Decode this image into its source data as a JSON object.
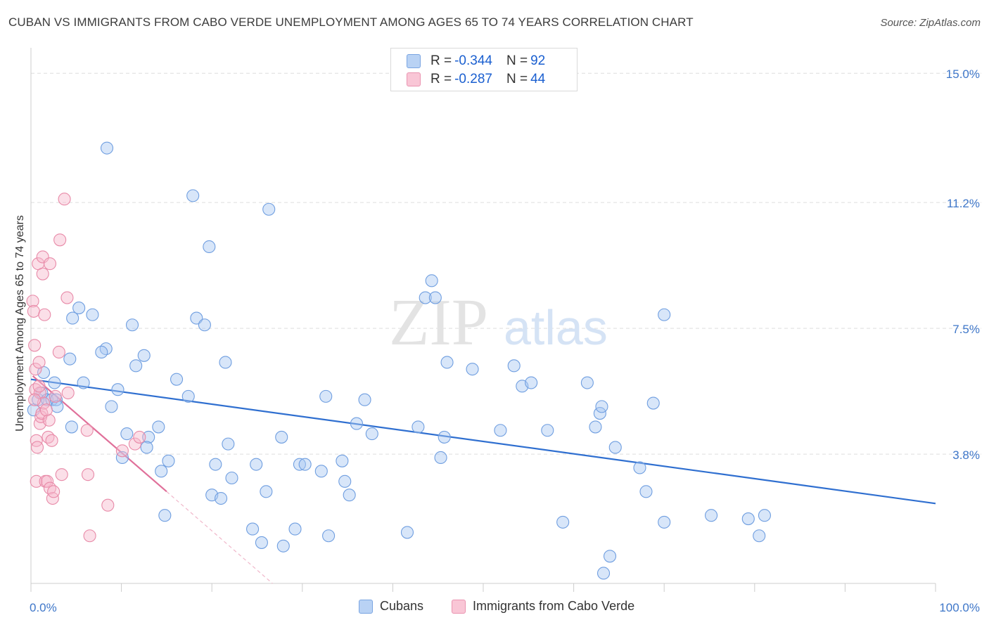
{
  "title": "CUBAN VS IMMIGRANTS FROM CABO VERDE UNEMPLOYMENT AMONG AGES 65 TO 74 YEARS CORRELATION CHART",
  "source": "Source: ZipAtlas.com",
  "watermark": {
    "zip": "ZIP",
    "atlas": "atlas"
  },
  "legend": {
    "cubans": {
      "r_label": "R = ",
      "r_value": "-0.344",
      "n_label": "N = ",
      "n_value": "92"
    },
    "caboverde": {
      "r_label": "R = ",
      "r_value": "-0.287",
      "n_label": "N = ",
      "n_value": "44"
    }
  },
  "colors": {
    "blue_fill": "#a9c8f2",
    "blue_stroke": "#6f9ee0",
    "blue_line": "#2f6fd0",
    "pink_fill": "#f7b9cd",
    "pink_stroke": "#e88aa8",
    "pink_line": "#e0709a",
    "grid": "#dddddd",
    "axis_label": "#3f77c9"
  },
  "chart_data": {
    "type": "scatter",
    "title": "CUBAN VS IMMIGRANTS FROM CABO VERDE UNEMPLOYMENT AMONG AGES 65 TO 74 YEARS CORRELATION CHART",
    "xlabel": "",
    "ylabel": "Unemployment Among Ages 65 to 74 years",
    "xlim": [
      0,
      100
    ],
    "ylim": [
      0,
      15.5
    ],
    "x_tick_labels": [
      "0.0%",
      "100.0%"
    ],
    "y_ticks": [
      3.8,
      7.5,
      11.2,
      15.0
    ],
    "y_tick_labels": [
      "3.8%",
      "7.5%",
      "11.2%",
      "15.0%"
    ],
    "series": [
      {
        "name": "Cubans",
        "color": "#a9c8f2",
        "trend": {
          "x": [
            0,
            100
          ],
          "y": [
            6.0,
            2.35
          ]
        },
        "points": [
          [
            0.3,
            5.1
          ],
          [
            0.8,
            5.4
          ],
          [
            1.2,
            5.6
          ],
          [
            1.4,
            6.2
          ],
          [
            1.8,
            5.4
          ],
          [
            2.3,
            5.4
          ],
          [
            2.6,
            5.9
          ],
          [
            2.8,
            5.4
          ],
          [
            2.9,
            5.2
          ],
          [
            4.3,
            6.6
          ],
          [
            5.3,
            8.1
          ],
          [
            4.6,
            7.8
          ],
          [
            6.8,
            7.9
          ],
          [
            5.8,
            5.9
          ],
          [
            8.3,
            6.9
          ],
          [
            7.8,
            6.8
          ],
          [
            8.4,
            12.8
          ],
          [
            8.9,
            5.2
          ],
          [
            9.6,
            5.7
          ],
          [
            10.1,
            3.7
          ],
          [
            10.6,
            4.4
          ],
          [
            11.2,
            7.6
          ],
          [
            12.5,
            6.7
          ],
          [
            11.6,
            6.4
          ],
          [
            13.0,
            4.3
          ],
          [
            12.8,
            4.0
          ],
          [
            14.1,
            4.6
          ],
          [
            14.4,
            3.3
          ],
          [
            14.8,
            2.0
          ],
          [
            15.2,
            3.6
          ],
          [
            4.5,
            4.6
          ],
          [
            16.1,
            6.0
          ],
          [
            17.4,
            5.5
          ],
          [
            17.9,
            11.4
          ],
          [
            18.3,
            7.8
          ],
          [
            19.2,
            7.6
          ],
          [
            19.7,
            9.9
          ],
          [
            20.0,
            2.6
          ],
          [
            20.4,
            3.5
          ],
          [
            21.0,
            2.5
          ],
          [
            21.5,
            6.5
          ],
          [
            21.8,
            4.1
          ],
          [
            22.2,
            3.1
          ],
          [
            24.5,
            1.6
          ],
          [
            24.9,
            3.5
          ],
          [
            26.0,
            2.7
          ],
          [
            26.3,
            11.0
          ],
          [
            25.5,
            1.2
          ],
          [
            27.7,
            4.3
          ],
          [
            27.9,
            1.1
          ],
          [
            29.2,
            1.6
          ],
          [
            29.7,
            3.5
          ],
          [
            30.3,
            3.5
          ],
          [
            32.1,
            3.3
          ],
          [
            32.6,
            5.5
          ],
          [
            32.9,
            1.4
          ],
          [
            34.4,
            3.6
          ],
          [
            34.7,
            3.0
          ],
          [
            35.2,
            2.6
          ],
          [
            36.0,
            4.7
          ],
          [
            36.9,
            5.4
          ],
          [
            37.7,
            4.4
          ],
          [
            41.6,
            1.5
          ],
          [
            42.8,
            4.6
          ],
          [
            43.6,
            8.4
          ],
          [
            44.3,
            8.9
          ],
          [
            44.7,
            8.4
          ],
          [
            45.3,
            3.7
          ],
          [
            45.7,
            4.3
          ],
          [
            46.0,
            6.5
          ],
          [
            48.8,
            6.3
          ],
          [
            51.9,
            4.5
          ],
          [
            53.4,
            6.4
          ],
          [
            54.3,
            5.8
          ],
          [
            55.3,
            5.9
          ],
          [
            57.1,
            4.5
          ],
          [
            58.8,
            1.8
          ],
          [
            61.5,
            5.9
          ],
          [
            62.4,
            4.6
          ],
          [
            62.9,
            5.0
          ],
          [
            63.1,
            5.2
          ],
          [
            64.0,
            0.8
          ],
          [
            64.6,
            4.0
          ],
          [
            63.3,
            0.3
          ],
          [
            67.3,
            3.4
          ],
          [
            68.0,
            2.7
          ],
          [
            68.8,
            5.3
          ],
          [
            70.0,
            7.9
          ],
          [
            70.0,
            1.8
          ],
          [
            75.2,
            2.0
          ],
          [
            79.3,
            1.9
          ],
          [
            80.5,
            1.4
          ],
          [
            81.1,
            2.0
          ]
        ]
      },
      {
        "name": "Immigrants from Cabo Verde",
        "color": "#f7b9cd",
        "trend": {
          "x": [
            0.2,
            15.0
          ],
          "y": [
            6.1,
            2.7
          ]
        },
        "trend_ext": {
          "x": [
            15.0,
            26.7
          ],
          "y": [
            2.7,
            0.0
          ]
        },
        "points": [
          [
            0.2,
            8.3
          ],
          [
            0.3,
            8.0
          ],
          [
            0.4,
            7.0
          ],
          [
            0.5,
            6.3
          ],
          [
            0.5,
            5.7
          ],
          [
            0.6,
            4.2
          ],
          [
            0.6,
            3.0
          ],
          [
            0.7,
            4.0
          ],
          [
            0.8,
            9.4
          ],
          [
            0.9,
            6.5
          ],
          [
            1.0,
            4.7
          ],
          [
            1.0,
            5.6
          ],
          [
            1.1,
            4.9
          ],
          [
            1.2,
            5.0
          ],
          [
            1.3,
            9.1
          ],
          [
            1.3,
            9.6
          ],
          [
            1.4,
            5.3
          ],
          [
            1.5,
            7.9
          ],
          [
            1.6,
            3.0
          ],
          [
            1.8,
            3.0
          ],
          [
            1.9,
            4.3
          ],
          [
            2.0,
            4.8
          ],
          [
            2.1,
            9.4
          ],
          [
            2.1,
            2.8
          ],
          [
            2.3,
            4.2
          ],
          [
            2.4,
            2.5
          ],
          [
            2.5,
            2.7
          ],
          [
            2.7,
            5.5
          ],
          [
            3.1,
            6.8
          ],
          [
            3.2,
            10.1
          ],
          [
            3.4,
            3.2
          ],
          [
            3.7,
            11.3
          ],
          [
            4.0,
            8.4
          ],
          [
            4.1,
            5.6
          ],
          [
            6.2,
            4.5
          ],
          [
            6.3,
            3.2
          ],
          [
            6.5,
            1.4
          ],
          [
            8.5,
            2.3
          ],
          [
            10.1,
            3.9
          ],
          [
            11.5,
            4.1
          ],
          [
            12.0,
            4.3
          ],
          [
            0.9,
            5.8
          ],
          [
            1.7,
            5.1
          ],
          [
            0.4,
            5.4
          ]
        ]
      }
    ]
  }
}
